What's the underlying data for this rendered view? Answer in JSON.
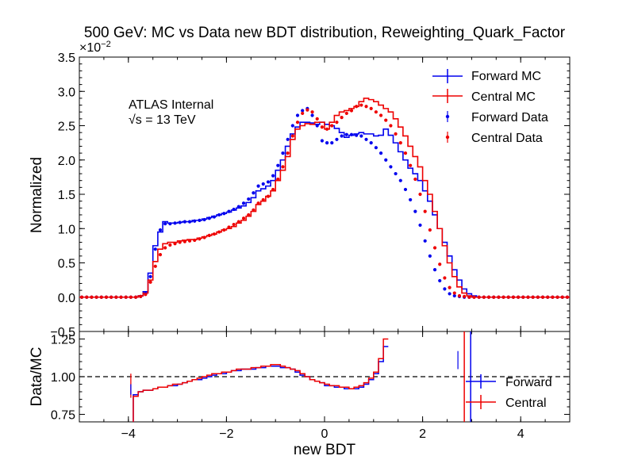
{
  "chart_data": {
    "type": "line",
    "title": "500 GeV: MC vs Data new BDT distribution, Reweighting_Quark_Factor",
    "annotations": [
      "ATLAS Internal",
      "√s = 13 TeV"
    ],
    "colors": {
      "forward": "#0000ee",
      "central": "#ee0000",
      "ref_line": "#000000"
    },
    "top_panel": {
      "ylabel": "Normalized",
      "yscale_label": "×10",
      "yscale_exp": "−2",
      "ylim": [
        -0.5,
        3.5
      ],
      "yticks": [
        {
          "v": -0.5,
          "label": "−0.5"
        },
        {
          "v": 0.0,
          "label": "0.0"
        },
        {
          "v": 0.5,
          "label": "0.5"
        },
        {
          "v": 1.0,
          "label": "1.0"
        },
        {
          "v": 1.5,
          "label": "1.5"
        },
        {
          "v": 2.0,
          "label": "2.0"
        },
        {
          "v": 2.5,
          "label": "2.5"
        },
        {
          "v": 3.0,
          "label": "3.0"
        },
        {
          "v": 3.5,
          "label": "3.5"
        }
      ],
      "legend": [
        "Forward MC",
        "Central MC",
        "Forward Data",
        "Central Data"
      ],
      "bins": [
        -5.0,
        -4.9,
        -4.8,
        -4.7,
        -4.6,
        -4.5,
        -4.4,
        -4.3,
        -4.2,
        -4.1,
        -4.0,
        -3.9,
        -3.8,
        -3.7,
        -3.6,
        -3.5,
        -3.4,
        -3.3,
        -3.2,
        -3.1,
        -3.0,
        -2.9,
        -2.8,
        -2.7,
        -2.6,
        -2.5,
        -2.4,
        -2.3,
        -2.2,
        -2.1,
        -2.0,
        -1.9,
        -1.8,
        -1.7,
        -1.6,
        -1.5,
        -1.4,
        -1.3,
        -1.2,
        -1.1,
        -1.0,
        -0.9,
        -0.8,
        -0.7,
        -0.6,
        -0.5,
        -0.4,
        -0.3,
        -0.2,
        -0.1,
        0.0,
        0.1,
        0.2,
        0.3,
        0.4,
        0.5,
        0.6,
        0.7,
        0.8,
        0.9,
        1.0,
        1.1,
        1.2,
        1.3,
        1.4,
        1.5,
        1.6,
        1.7,
        1.8,
        1.9,
        2.0,
        2.1,
        2.2,
        2.3,
        2.4,
        2.5,
        2.6,
        2.7,
        2.8,
        2.9,
        3.0,
        3.1,
        3.2,
        3.3,
        3.4,
        3.5,
        3.6,
        3.7,
        3.8,
        3.9,
        4.0,
        4.1,
        4.2,
        4.3,
        4.4,
        4.5,
        4.6,
        4.7,
        4.8,
        4.9,
        5.0
      ],
      "series": [
        {
          "name": "Forward MC",
          "style": "step",
          "color": "#0000ee",
          "values": [
            0,
            0,
            0,
            0,
            0,
            0,
            0,
            0,
            0,
            0,
            0,
            0,
            0.02,
            0.08,
            0.35,
            0.75,
            0.95,
            1.1,
            1.08,
            1.08,
            1.09,
            1.1,
            1.1,
            1.12,
            1.12,
            1.14,
            1.16,
            1.18,
            1.2,
            1.22,
            1.24,
            1.27,
            1.3,
            1.33,
            1.38,
            1.45,
            1.55,
            1.58,
            1.62,
            1.7,
            1.85,
            2.0,
            2.2,
            2.38,
            2.48,
            2.55,
            2.55,
            2.54,
            2.52,
            2.55,
            2.52,
            2.5,
            2.46,
            2.4,
            2.33,
            2.36,
            2.38,
            2.4,
            2.38,
            2.38,
            2.35,
            2.36,
            2.45,
            2.36,
            2.25,
            2.12,
            2.0,
            1.88,
            1.8,
            1.7,
            1.55,
            1.4,
            1.2,
            1.0,
            0.8,
            0.6,
            0.4,
            0.25,
            0.12,
            0.05,
            0.02,
            0,
            0,
            0,
            0,
            0,
            0,
            0,
            0,
            0,
            0,
            0,
            0,
            0,
            0,
            0,
            0,
            0,
            0,
            0
          ]
        },
        {
          "name": "Central MC",
          "style": "step",
          "color": "#ee0000",
          "values": [
            0,
            0,
            0,
            0,
            0,
            0,
            0,
            0,
            0,
            0,
            0,
            0,
            0.02,
            0.06,
            0.25,
            0.52,
            0.7,
            0.78,
            0.8,
            0.8,
            0.82,
            0.83,
            0.84,
            0.84,
            0.86,
            0.88,
            0.9,
            0.92,
            0.95,
            0.98,
            1.0,
            1.03,
            1.08,
            1.12,
            1.18,
            1.25,
            1.35,
            1.4,
            1.47,
            1.55,
            1.7,
            1.85,
            2.05,
            2.3,
            2.45,
            2.5,
            2.53,
            2.52,
            2.55,
            2.55,
            2.45,
            2.55,
            2.65,
            2.7,
            2.72,
            2.75,
            2.78,
            2.85,
            2.9,
            2.88,
            2.85,
            2.8,
            2.75,
            2.7,
            2.6,
            2.48,
            2.35,
            2.2,
            2.05,
            1.9,
            1.7,
            1.5,
            1.25,
            1.0,
            0.75,
            0.5,
            0.3,
            0.15,
            0.06,
            0.02,
            0,
            0,
            0,
            0,
            0,
            0,
            0,
            0,
            0,
            0,
            0,
            0,
            0,
            0,
            0,
            0,
            0,
            0,
            0,
            0
          ]
        },
        {
          "name": "Forward Data",
          "style": "points",
          "color": "#0000ee",
          "values": [
            0,
            0,
            0,
            0,
            0,
            0,
            0,
            0,
            0,
            0,
            0,
            0,
            0.01,
            0.05,
            0.3,
            0.7,
            0.98,
            1.07,
            1.07,
            1.08,
            1.09,
            1.1,
            1.1,
            1.11,
            1.12,
            1.13,
            1.15,
            1.17,
            1.2,
            1.22,
            1.25,
            1.28,
            1.32,
            1.37,
            1.43,
            1.52,
            1.62,
            1.65,
            1.68,
            1.77,
            1.92,
            2.1,
            2.3,
            2.5,
            2.65,
            2.72,
            2.75,
            2.65,
            2.5,
            2.28,
            2.25,
            2.25,
            2.3,
            2.35,
            2.37,
            2.37,
            2.36,
            2.35,
            2.3,
            2.25,
            2.18,
            2.1,
            2.0,
            1.9,
            1.8,
            1.7,
            1.57,
            1.42,
            1.25,
            1.05,
            0.82,
            0.6,
            0.4,
            0.24,
            0.12,
            0.05,
            0.02,
            0.01,
            0,
            0,
            0,
            0,
            0,
            0,
            0,
            0,
            0,
            0,
            0,
            0,
            0,
            0,
            0,
            0,
            0,
            0,
            0,
            0,
            0,
            0
          ]
        },
        {
          "name": "Central Data",
          "style": "points",
          "color": "#ee0000",
          "values": [
            0,
            0,
            0,
            0,
            0,
            0,
            0,
            0,
            0,
            0,
            0,
            0,
            0.01,
            0.04,
            0.22,
            0.45,
            0.62,
            0.72,
            0.76,
            0.78,
            0.8,
            0.81,
            0.82,
            0.83,
            0.85,
            0.87,
            0.9,
            0.92,
            0.95,
            0.98,
            1.02,
            1.06,
            1.1,
            1.15,
            1.2,
            1.27,
            1.37,
            1.42,
            1.47,
            1.57,
            1.72,
            1.9,
            2.1,
            2.35,
            2.55,
            2.68,
            2.73,
            2.7,
            2.6,
            2.48,
            2.45,
            2.5,
            2.55,
            2.62,
            2.68,
            2.72,
            2.78,
            2.8,
            2.78,
            2.75,
            2.7,
            2.65,
            2.58,
            2.5,
            2.38,
            2.25,
            2.1,
            1.92,
            1.72,
            1.5,
            1.25,
            0.98,
            0.72,
            0.48,
            0.28,
            0.14,
            0.06,
            0.02,
            0.01,
            0,
            0,
            0,
            0,
            0,
            0,
            0,
            0,
            0,
            0,
            0,
            0,
            0,
            0,
            0,
            0,
            0,
            0,
            0,
            0,
            0
          ]
        }
      ]
    },
    "bottom_panel": {
      "ylabel": "Data/MC",
      "ylim": [
        0.7,
        1.3
      ],
      "yticks": [
        {
          "v": 0.75,
          "label": "0.75"
        },
        {
          "v": 1.0,
          "label": "1.00"
        },
        {
          "v": 1.25,
          "label": "1.25"
        }
      ],
      "ref_line": 1.0,
      "legend": [
        "Forward",
        "Central"
      ],
      "range": [
        -3.9,
        2.9
      ],
      "forward_ratio": [
        0.88,
        0.9,
        0.91,
        0.91,
        0.92,
        0.93,
        0.93,
        0.94,
        0.94,
        0.95,
        0.96,
        0.97,
        0.98,
        0.98,
        0.99,
        1.0,
        1.01,
        1.02,
        1.02,
        1.03,
        1.04,
        1.04,
        1.05,
        1.05,
        1.05,
        1.06,
        1.06,
        1.07,
        1.07,
        1.07,
        1.06,
        1.06,
        1.05,
        1.03,
        1.01,
        1.0,
        0.98,
        0.97,
        0.96,
        0.94,
        0.94,
        0.93,
        0.93,
        0.92,
        0.92,
        0.92,
        0.93,
        0.95,
        0.98,
        1.02,
        1.1,
        1.2
      ],
      "central_ratio": [
        0.87,
        0.9,
        0.91,
        0.91,
        0.92,
        0.93,
        0.93,
        0.94,
        0.95,
        0.95,
        0.96,
        0.97,
        0.98,
        0.99,
        1.0,
        1.01,
        1.02,
        1.02,
        1.03,
        1.03,
        1.04,
        1.05,
        1.05,
        1.05,
        1.06,
        1.06,
        1.07,
        1.07,
        1.08,
        1.08,
        1.07,
        1.06,
        1.05,
        1.04,
        1.02,
        1.0,
        0.98,
        0.97,
        0.96,
        0.95,
        0.94,
        0.94,
        0.93,
        0.93,
        0.92,
        0.93,
        0.94,
        0.96,
        0.99,
        1.03,
        1.12,
        1.25
      ]
    },
    "xlabel": "new BDT",
    "xlim": [
      -5,
      5
    ],
    "xticks": [
      {
        "v": -4,
        "label": "−4"
      },
      {
        "v": -2,
        "label": "−2"
      },
      {
        "v": 0,
        "label": "0"
      },
      {
        "v": 2,
        "label": "2"
      },
      {
        "v": 4,
        "label": "4"
      }
    ]
  }
}
